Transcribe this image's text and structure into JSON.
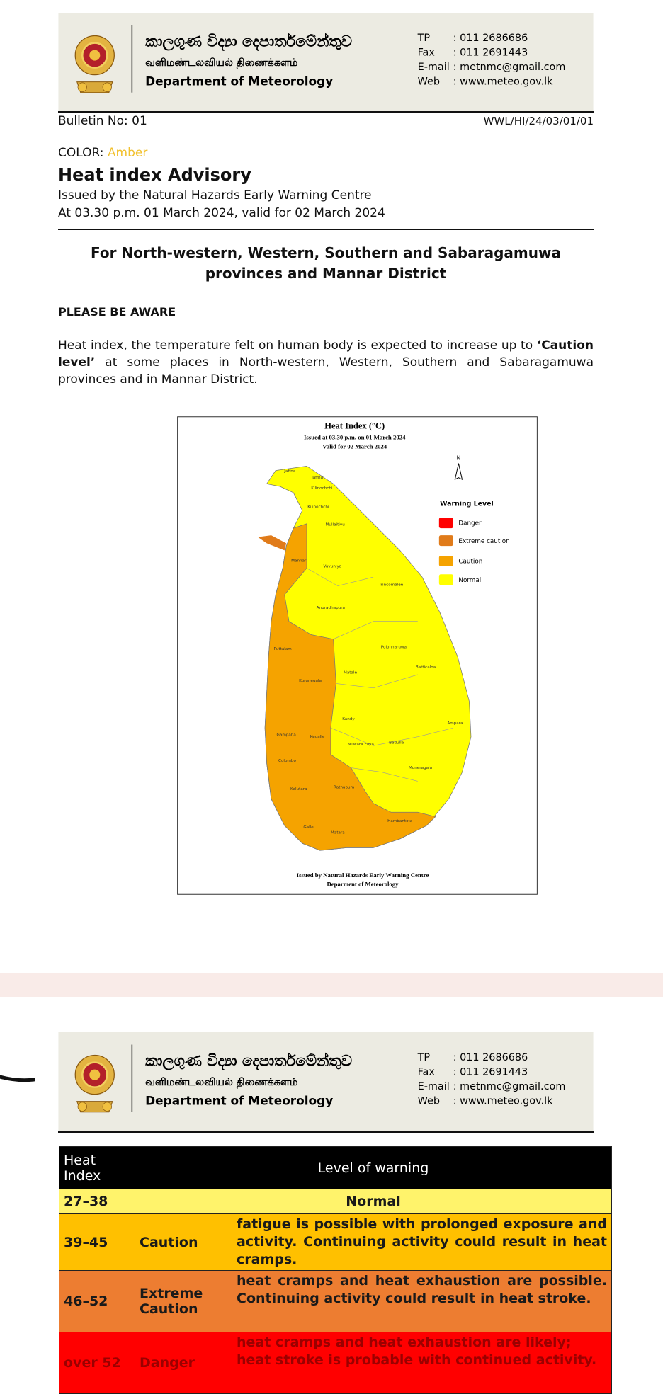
{
  "header": {
    "sinhala": "කාලගුණ විද්‍යා දෙපාර්තමේන්තුව",
    "tamil": "வளிமண்டலவியல் திணைக்களம்",
    "english": "Department of Meteorology",
    "contacts": [
      {
        "label": "TP",
        "value": ": 011 2686686"
      },
      {
        "label": "Fax",
        "value": ": 011 2691443"
      },
      {
        "label": "E-mail",
        "value": ": metnmc@gmail.com"
      },
      {
        "label": "Web",
        "value": ": www.meteo.gov.lk"
      }
    ]
  },
  "bulletin": {
    "number": "Bulletin No: 01",
    "reference": "WWL/HI/24/03/01/01"
  },
  "color": {
    "label": "COLOR:",
    "value": "Amber"
  },
  "title": "Heat index Advisory",
  "issued_by": "Issued by the Natural Hazards Early Warning Centre",
  "issued_at": "At 03.30 p.m. 01 March 2024, valid for 02 March 2024",
  "subtitle": "For North-western, Western, Southern and Sabaragamuwa provinces and Mannar District",
  "aware": "PLEASE BE AWARE",
  "paragraph": [
    "Heat index, the temperature felt on human body is expected to increase up to ",
    "‘Caution level’",
    " at some places in North-western, Western, Southern and Sabaragamuwa provinces and in Mannar District."
  ],
  "map": {
    "title": "Heat Index (°C)",
    "issued": "Issued at 03.30 p.m. on 01 March 2024",
    "valid": "Valid for 02 March 2024",
    "north": "N",
    "legend": {
      "title": "Warning Level",
      "items": [
        "Danger",
        "Extreme caution",
        "Caution",
        "Normal"
      ]
    },
    "districts": [
      "Jaffna",
      "Jaffna",
      "Kilinochchi",
      "Kilinochchi",
      "Mullaitivu",
      "Mannar",
      "Vavuniya",
      "Trincomalee",
      "Anuradhapura",
      "Puttalam",
      "Polonnaruwa",
      "Batticaloa",
      "Kurunegala",
      "Matale",
      "Kandy",
      "Ampara",
      "Gampaha",
      "Kegalle",
      "Nuwara Eliya",
      "Badulla",
      "Colombo",
      "Moneragala",
      "Kalutara",
      "Ratnapura",
      "Hambantota",
      "Galle",
      "Matara"
    ],
    "footer": [
      "Issued by Natural Hazards Early Warning Centre",
      "Deparment of Meteorology"
    ]
  },
  "table": {
    "header": [
      "Heat Index",
      "Level of warning"
    ],
    "rows": [
      [
        "27–38",
        "Normal"
      ],
      [
        "39–45",
        "Caution",
        "fatigue is possible with prolonged exposure and activity. Continuing activity could result in heat cramps."
      ],
      [
        "46–52",
        "Extreme Caution",
        "heat cramps and heat exhaustion are possible. Continuing activity could result in heat stroke."
      ],
      [
        "over 52",
        "Danger",
        "heat cramps and heat exhaustion are likely; heat stroke is probable with continued activity."
      ]
    ]
  }
}
